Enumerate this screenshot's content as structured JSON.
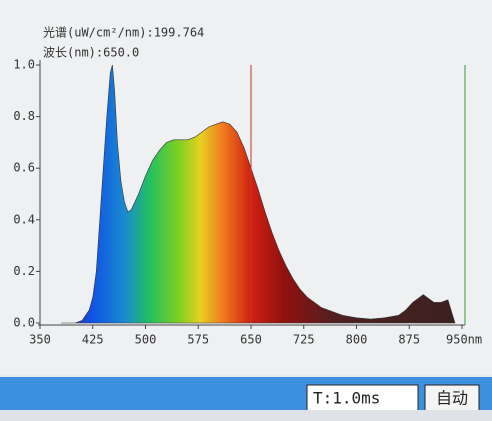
{
  "chart_data": {
    "type": "area",
    "annotations": [
      "光谱(uW/cm²/nm):199.764",
      "波长(nm):650.0"
    ],
    "x": [
      380,
      400,
      410,
      420,
      425,
      430,
      435,
      440,
      445,
      450,
      453,
      456,
      460,
      465,
      470,
      475,
      480,
      490,
      500,
      510,
      520,
      530,
      540,
      550,
      560,
      570,
      580,
      590,
      600,
      610,
      620,
      630,
      640,
      650,
      660,
      670,
      680,
      690,
      700,
      710,
      720,
      730,
      740,
      750,
      760,
      780,
      800,
      820,
      840,
      860,
      870,
      880,
      890,
      895,
      900,
      910,
      920,
      930,
      940
    ],
    "values": [
      0,
      0,
      0.01,
      0.05,
      0.1,
      0.2,
      0.4,
      0.6,
      0.8,
      0.97,
      1.0,
      0.9,
      0.7,
      0.55,
      0.47,
      0.43,
      0.44,
      0.5,
      0.57,
      0.63,
      0.67,
      0.7,
      0.71,
      0.71,
      0.71,
      0.72,
      0.74,
      0.76,
      0.77,
      0.78,
      0.77,
      0.74,
      0.68,
      0.6,
      0.52,
      0.43,
      0.35,
      0.28,
      0.22,
      0.17,
      0.13,
      0.1,
      0.08,
      0.06,
      0.05,
      0.03,
      0.02,
      0.015,
      0.02,
      0.03,
      0.05,
      0.08,
      0.1,
      0.11,
      0.1,
      0.08,
      0.08,
      0.09,
      0
    ],
    "xlim": [
      350,
      950
    ],
    "xticks": [
      350,
      425,
      500,
      575,
      650,
      725,
      800,
      875,
      {
        "value": 950,
        "label": "950nm"
      }
    ],
    "ylim": [
      0,
      1.0
    ],
    "yticks": [
      {
        "value": 0,
        "label": "0.0"
      },
      {
        "value": 0.2,
        "label": "0.2"
      },
      {
        "value": 0.4,
        "label": "0.4"
      },
      {
        "value": 0.6,
        "label": "0.6"
      },
      {
        "value": 0.8,
        "label": "0.8"
      },
      {
        "value": 1.0,
        "label": "1.0"
      }
    ],
    "cursor": 650,
    "cursor_color": "#c0392b"
  },
  "toolbar": {
    "exposure": "T:1.0ms",
    "button": "自动"
  }
}
